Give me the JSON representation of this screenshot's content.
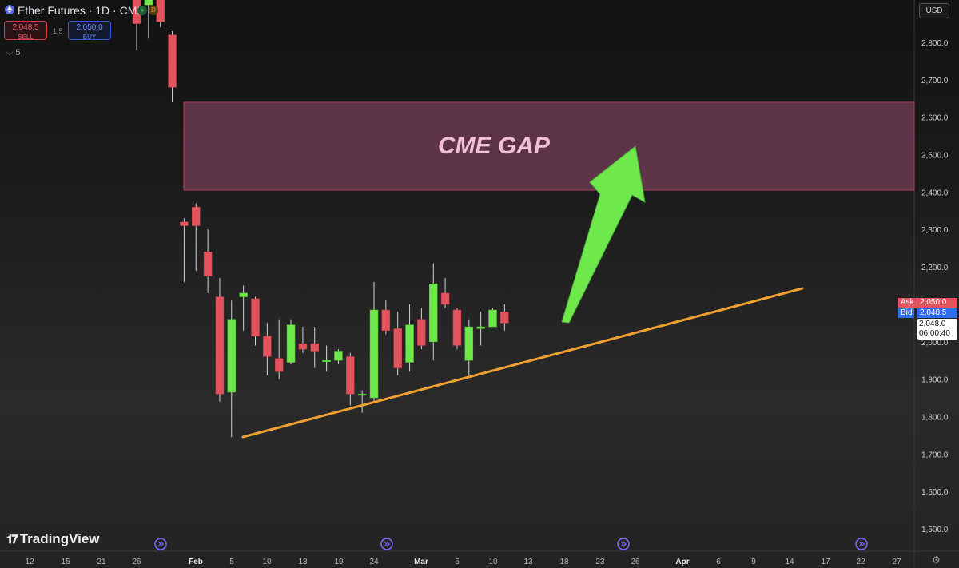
{
  "header": {
    "title": "Ether Futures · 1D · CME",
    "market_status_open": "●",
    "market_status_delayed": "D",
    "indicators_count": "5"
  },
  "trade": {
    "sell_price": "2,048.5",
    "sell_label": "SELL",
    "buy_price": "2,050.0",
    "buy_label": "BUY",
    "spread": "1.5"
  },
  "price_scale": {
    "currency": "USD",
    "ask_label": "Ask",
    "ask_price": "2,050.0",
    "bid_label": "Bid",
    "bid_price": "2,048.5",
    "last_price": "2,048.0",
    "countdown": "06:00:40"
  },
  "logo": "TradingView",
  "colors": {
    "up": "#6ee84a",
    "down": "#e2535e",
    "gap_fill": "#6a3850",
    "trendline": "#f0a030",
    "arrow": "#6ee84a",
    "gap_text": "#f3bfd6"
  },
  "chart_data": {
    "type": "candlestick",
    "symbol": "Ether Futures",
    "interval": "1D",
    "exchange": "CME",
    "y_ticks": [
      "2,800.0",
      "2,700.0",
      "2,600.0",
      "2,500.0",
      "2,400.0",
      "2,300.0",
      "2,200.0",
      "2,100.0",
      "2,000.0",
      "1,900.0",
      "1,800.0",
      "1,700.0",
      "1,600.0",
      "1,500.0"
    ],
    "y_tick_values": [
      2800,
      2700,
      2600,
      2500,
      2400,
      2300,
      2200,
      2100,
      2000,
      1900,
      1800,
      1700,
      1600,
      1500
    ],
    "ylim": [
      1470,
      2900
    ],
    "x_ticks": [
      "12",
      "15",
      "21",
      "26",
      "Feb",
      "5",
      "10",
      "13",
      "19",
      "24",
      "Mar",
      "5",
      "10",
      "13",
      "18",
      "23",
      "26",
      "Apr",
      "6",
      "9",
      "14",
      "17",
      "22",
      "27"
    ],
    "x_tick_bold": [
      "Feb",
      "Mar",
      "Apr"
    ],
    "candles": [
      {
        "o": 2960,
        "h": 2960,
        "l": 2780,
        "c": 2850
      },
      {
        "o": 2900,
        "h": 2960,
        "l": 2810,
        "c": 2950
      },
      {
        "o": 2950,
        "h": 2960,
        "l": 2840,
        "c": 2855
      },
      {
        "o": 2820,
        "h": 2830,
        "l": 2640,
        "c": 2680
      },
      {
        "o": 2320,
        "h": 2330,
        "l": 2160,
        "c": 2310
      },
      {
        "o": 2360,
        "h": 2370,
        "l": 2190,
        "c": 2310
      },
      {
        "o": 2240,
        "h": 2300,
        "l": 2130,
        "c": 2175
      },
      {
        "o": 2120,
        "h": 2170,
        "l": 1840,
        "c": 1860
      },
      {
        "o": 1865,
        "h": 2110,
        "l": 1745,
        "c": 2060
      },
      {
        "o": 2120,
        "h": 2150,
        "l": 2030,
        "c": 2130
      },
      {
        "o": 2115,
        "h": 2120,
        "l": 1990,
        "c": 2015
      },
      {
        "o": 2015,
        "h": 2050,
        "l": 1910,
        "c": 1960
      },
      {
        "o": 1955,
        "h": 2060,
        "l": 1900,
        "c": 1920
      },
      {
        "o": 1945,
        "h": 2060,
        "l": 1940,
        "c": 2045
      },
      {
        "o": 1995,
        "h": 2040,
        "l": 1970,
        "c": 1980
      },
      {
        "o": 1995,
        "h": 2040,
        "l": 1930,
        "c": 1975
      },
      {
        "o": 1950,
        "h": 1990,
        "l": 1920,
        "c": 1950
      },
      {
        "o": 1950,
        "h": 1980,
        "l": 1940,
        "c": 1975
      },
      {
        "o": 1960,
        "h": 1970,
        "l": 1830,
        "c": 1860
      },
      {
        "o": 1860,
        "h": 1870,
        "l": 1810,
        "c": 1860
      },
      {
        "o": 1850,
        "h": 2160,
        "l": 1840,
        "c": 2085
      },
      {
        "o": 2085,
        "h": 2110,
        "l": 2020,
        "c": 2030
      },
      {
        "o": 2035,
        "h": 2080,
        "l": 1910,
        "c": 1930
      },
      {
        "o": 1945,
        "h": 2100,
        "l": 1920,
        "c": 2045
      },
      {
        "o": 2060,
        "h": 2090,
        "l": 1980,
        "c": 1990
      },
      {
        "o": 2000,
        "h": 2210,
        "l": 1950,
        "c": 2155
      },
      {
        "o": 2130,
        "h": 2170,
        "l": 2090,
        "c": 2100
      },
      {
        "o": 2085,
        "h": 2090,
        "l": 1980,
        "c": 1990
      },
      {
        "o": 1950,
        "h": 2060,
        "l": 1910,
        "c": 2040
      },
      {
        "o": 2035,
        "h": 2080,
        "l": 1990,
        "c": 2040
      },
      {
        "o": 2040,
        "h": 2090,
        "l": 2040,
        "c": 2085
      },
      {
        "o": 2080,
        "h": 2100,
        "l": 2030,
        "c": 2050
      }
    ],
    "annotations": [
      {
        "type": "rectangle",
        "label": "CME GAP",
        "y_range": [
          2405,
          2640
        ]
      },
      {
        "type": "trendline"
      },
      {
        "type": "arrow"
      }
    ]
  }
}
